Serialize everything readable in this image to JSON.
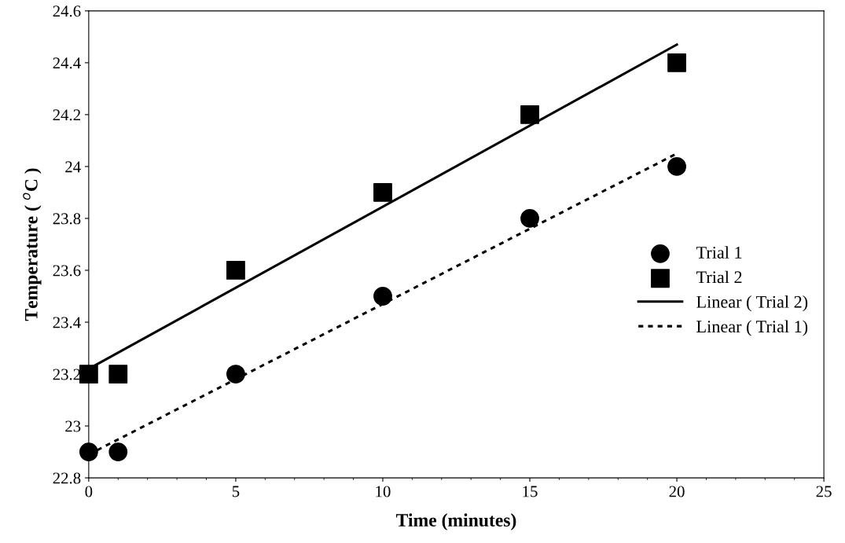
{
  "chart_data": {
    "type": "scatter",
    "xlabel": "Time (minutes)",
    "ylabel": "Temperature ( $^{o}$C )",
    "xlim": [
      0,
      25
    ],
    "xticks": [
      0,
      5,
      10,
      15,
      20,
      25
    ],
    "ylim": [
      22.8,
      24.6
    ],
    "yticks": [
      22.8,
      23,
      23.2,
      23.4,
      23.6,
      23.8,
      24,
      24.2,
      24.4,
      24.6
    ],
    "grid": false,
    "legend": "right",
    "series": [
      {
        "name": "Trial 1",
        "marker": "circle",
        "color": "#000000",
        "x": [
          0,
          1,
          5,
          10,
          15,
          20
        ],
        "values": [
          22.9,
          22.9,
          23.2,
          23.5,
          23.8,
          24
        ]
      },
      {
        "name": "Trial 2",
        "marker": "square",
        "color": "#000000",
        "x": [
          0,
          1,
          5,
          10,
          15,
          20
        ],
        "values": [
          23.2,
          23.2,
          23.6,
          23.9,
          24.2,
          24.4
        ]
      },
      {
        "name": "Linear ( Trial 2)",
        "type": "line",
        "line_style": "solid",
        "color": "#000000",
        "x": [
          0,
          20
        ],
        "values": [
          23.22,
          24.47
        ]
      },
      {
        "name": "Linear ( Trial 1)",
        "type": "line",
        "line_style": "dotted",
        "color": "#000000",
        "x": [
          0,
          20
        ],
        "values": [
          22.89,
          24.05
        ]
      }
    ]
  }
}
